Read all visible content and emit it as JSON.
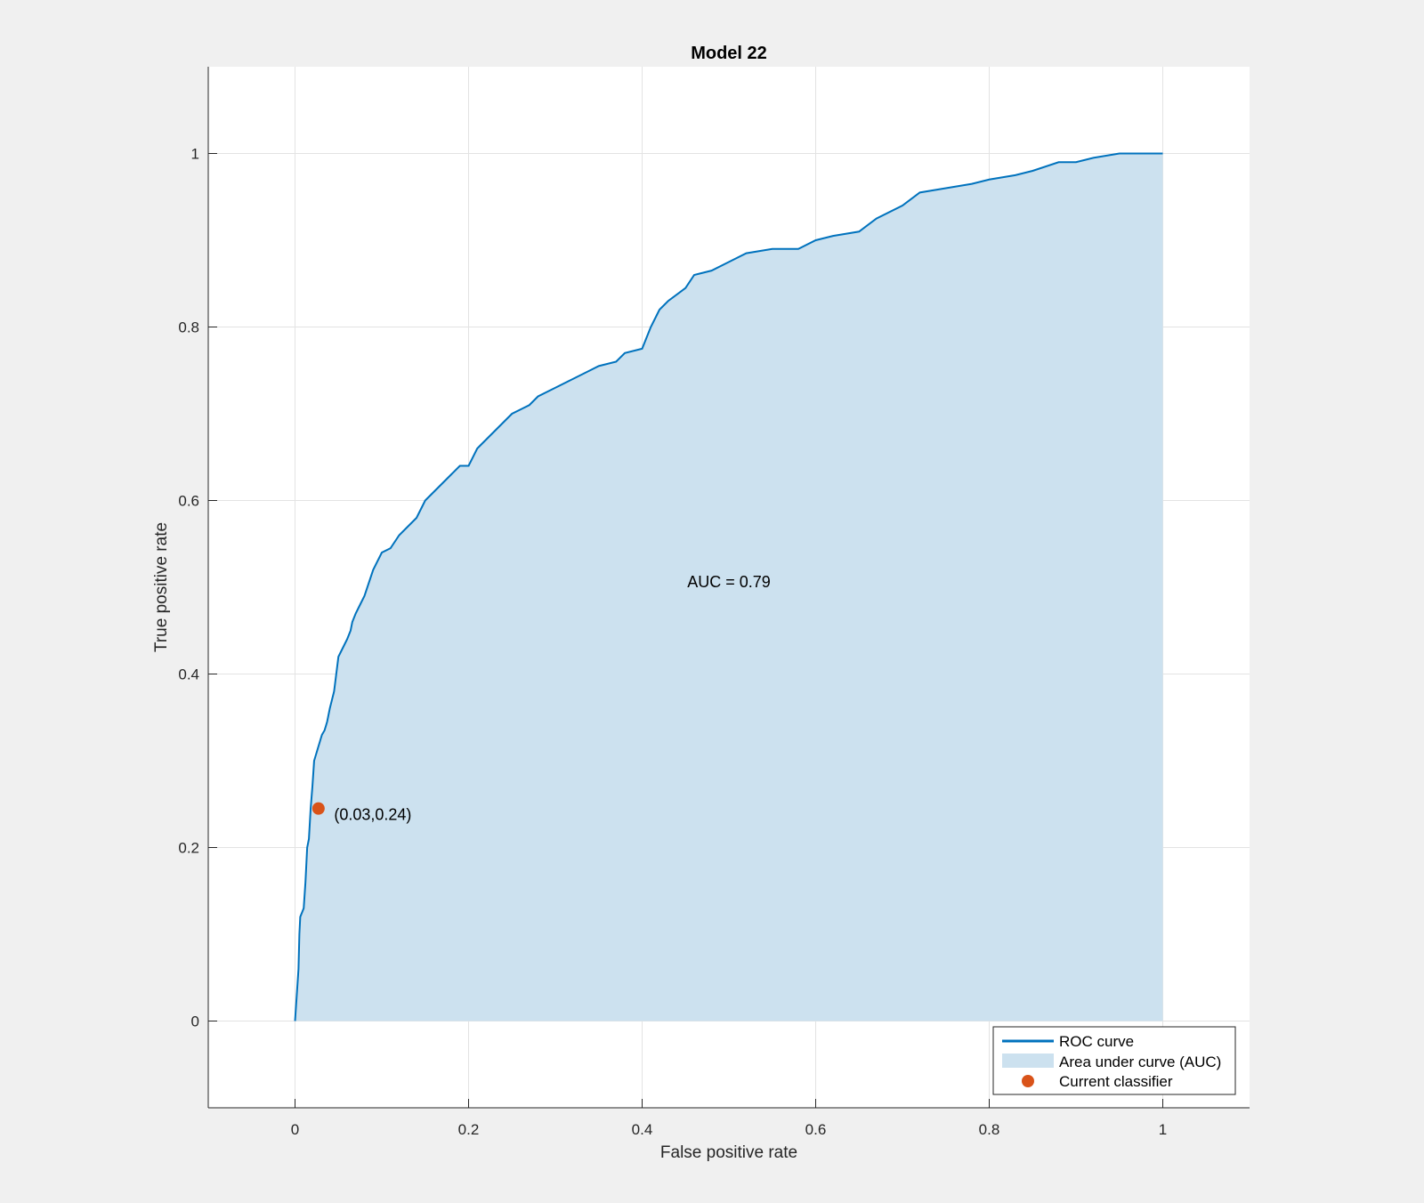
{
  "chart_data": {
    "type": "line",
    "title": "Model 22",
    "xlabel": "False positive rate",
    "ylabel": "True positive rate",
    "xlim": [
      -0.1,
      1.1
    ],
    "ylim": [
      -0.1,
      1.1
    ],
    "xticks": [
      0,
      0.2,
      0.4,
      0.6,
      0.8,
      1
    ],
    "yticks": [
      0,
      0.2,
      0.4,
      0.6,
      0.8,
      1
    ],
    "xtick_labels": [
      "0",
      "0.2",
      "0.4",
      "0.6",
      "0.8",
      "1"
    ],
    "ytick_labels": [
      "0",
      "0.2",
      "0.4",
      "0.6",
      "0.8",
      "1"
    ],
    "grid": true,
    "legend_position": "bottom-right",
    "series": [
      {
        "name": "ROC curve",
        "color": "#0072bd",
        "x": [
          0,
          0.002,
          0.004,
          0.005,
          0.006,
          0.008,
          0.01,
          0.012,
          0.014,
          0.016,
          0.018,
          0.02,
          0.022,
          0.025,
          0.028,
          0.031,
          0.034,
          0.037,
          0.04,
          0.045,
          0.05,
          0.055,
          0.06,
          0.062,
          0.064,
          0.066,
          0.07,
          0.075,
          0.08,
          0.09,
          0.1,
          0.11,
          0.12,
          0.13,
          0.14,
          0.15,
          0.16,
          0.17,
          0.18,
          0.19,
          0.2,
          0.21,
          0.22,
          0.23,
          0.24,
          0.25,
          0.26,
          0.27,
          0.28,
          0.3,
          0.32,
          0.34,
          0.35,
          0.37,
          0.38,
          0.4,
          0.41,
          0.42,
          0.43,
          0.45,
          0.46,
          0.48,
          0.5,
          0.52,
          0.55,
          0.58,
          0.6,
          0.62,
          0.65,
          0.67,
          0.7,
          0.72,
          0.75,
          0.78,
          0.8,
          0.83,
          0.85,
          0.88,
          0.9,
          0.92,
          0.95,
          1
        ],
        "y": [
          0,
          0.03,
          0.06,
          0.1,
          0.12,
          0.125,
          0.13,
          0.16,
          0.2,
          0.21,
          0.245,
          0.27,
          0.3,
          0.31,
          0.32,
          0.33,
          0.335,
          0.345,
          0.36,
          0.38,
          0.42,
          0.43,
          0.44,
          0.445,
          0.45,
          0.46,
          0.47,
          0.48,
          0.49,
          0.52,
          0.54,
          0.545,
          0.56,
          0.57,
          0.58,
          0.6,
          0.61,
          0.62,
          0.63,
          0.64,
          0.64,
          0.66,
          0.67,
          0.68,
          0.69,
          0.7,
          0.705,
          0.71,
          0.72,
          0.73,
          0.74,
          0.75,
          0.755,
          0.76,
          0.77,
          0.775,
          0.8,
          0.82,
          0.83,
          0.845,
          0.86,
          0.865,
          0.875,
          0.885,
          0.89,
          0.89,
          0.9,
          0.905,
          0.91,
          0.925,
          0.94,
          0.955,
          0.96,
          0.965,
          0.97,
          0.975,
          0.98,
          0.99,
          0.99,
          0.995,
          1,
          1
        ]
      },
      {
        "name": "Area under curve (AUC)",
        "color": "#cce1ef",
        "type": "area"
      },
      {
        "name": "Current classifier",
        "color": "#d95319",
        "type": "scatter",
        "x": [
          0.027
        ],
        "y": [
          0.245
        ]
      }
    ],
    "annotations": [
      {
        "text": "(0.03,0.24)",
        "x": 0.045,
        "y": 0.232
      },
      {
        "text": "AUC = 0.79",
        "x": 0.5,
        "y": 0.5
      }
    ]
  }
}
